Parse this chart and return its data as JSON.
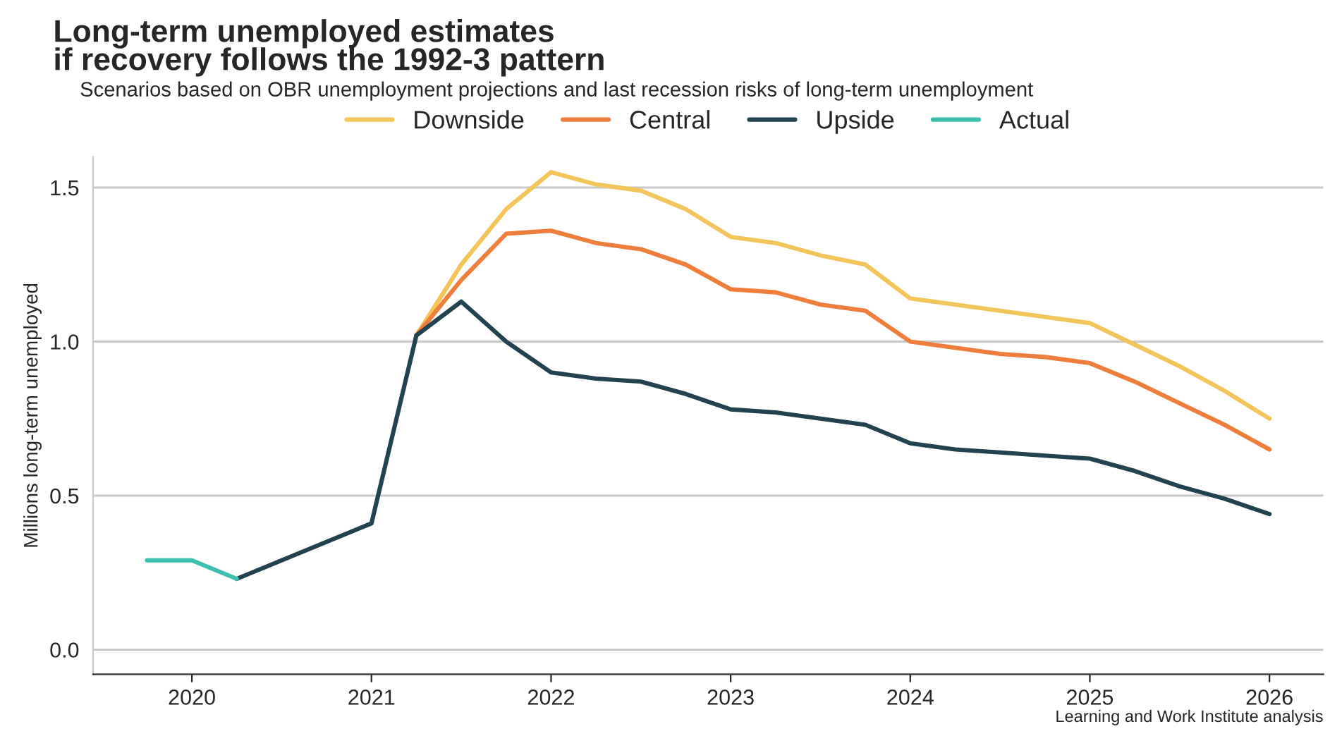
{
  "chart_data": {
    "type": "line",
    "title": "Long-term unemployed estimates\nif recovery follows the 1992-3 pattern",
    "subtitle": "Scenarios based on OBR unemployment projections and last recession risks of long-term unemployment",
    "ylabel": "Millions long-term unemployed",
    "annotations": [
      "Learning and Work Institute analysis"
    ],
    "series": [
      {
        "name": "Downside",
        "color": "#f2c45a",
        "x": [
          2021.25,
          2021.5,
          2021.75,
          2022,
          2022.25,
          2022.5,
          2022.75,
          2023,
          2023.25,
          2023.5,
          2023.75,
          2024,
          2024.25,
          2024.5,
          2024.75,
          2025,
          2025.25,
          2025.5,
          2025.75,
          2026
        ],
        "values": [
          1.02,
          1.25,
          1.43,
          1.55,
          1.51,
          1.49,
          1.43,
          1.34,
          1.32,
          1.28,
          1.25,
          1.14,
          1.12,
          1.1,
          1.08,
          1.06,
          0.99,
          0.92,
          0.84,
          0.75
        ]
      },
      {
        "name": "Central",
        "color": "#ef7d3c",
        "x": [
          2021.25,
          2021.5,
          2021.75,
          2022,
          2022.25,
          2022.5,
          2022.75,
          2023,
          2023.25,
          2023.5,
          2023.75,
          2024,
          2024.25,
          2024.5,
          2024.75,
          2025,
          2025.25,
          2025.5,
          2025.75,
          2026
        ],
        "values": [
          1.02,
          1.2,
          1.35,
          1.36,
          1.32,
          1.3,
          1.25,
          1.17,
          1.16,
          1.12,
          1.1,
          1.0,
          0.98,
          0.96,
          0.95,
          0.93,
          0.87,
          0.8,
          0.73,
          0.65
        ]
      },
      {
        "name": "Upside",
        "color": "#22424f",
        "x": [
          2020.25,
          2021,
          2021.25,
          2021.5,
          2021.75,
          2022,
          2022.25,
          2022.5,
          2022.75,
          2023,
          2023.25,
          2023.5,
          2023.75,
          2024,
          2024.25,
          2024.5,
          2024.75,
          2025,
          2025.25,
          2025.5,
          2025.75,
          2026
        ],
        "values": [
          0.23,
          0.41,
          1.02,
          1.13,
          1.0,
          0.9,
          0.88,
          0.87,
          0.83,
          0.78,
          0.77,
          0.75,
          0.73,
          0.67,
          0.65,
          0.64,
          0.63,
          0.62,
          0.58,
          0.53,
          0.49,
          0.44
        ]
      },
      {
        "name": "Actual",
        "color": "#3cbfae",
        "x": [
          2019.75,
          2020,
          2020.25
        ],
        "values": [
          0.29,
          0.29,
          0.23
        ]
      }
    ],
    "xlim": [
      2019.45,
      2026.3
    ],
    "xticks": [
      2020,
      2021,
      2022,
      2023,
      2024,
      2025,
      2026
    ],
    "ylim": [
      -0.08,
      1.6
    ],
    "yticks": [
      {
        "value": 0,
        "label": "0.0"
      },
      0.5,
      {
        "value": 1,
        "label": "1.0"
      },
      1.5
    ],
    "grid": "y",
    "legend": "top",
    "line_style": "solid",
    "marker": "none"
  }
}
